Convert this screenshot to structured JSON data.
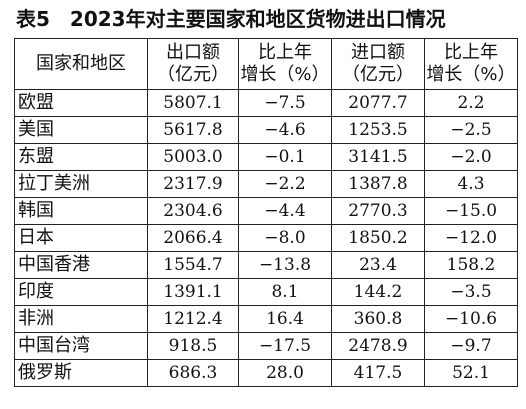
{
  "title": "表5　2023年对主要国家和地区货物进出口情况",
  "headers": {
    "region": "国家和地区",
    "export_line1": "出口额",
    "export_line2": "（亿元）",
    "export_growth_line1": "比上年",
    "export_growth_line2": "增长（%）",
    "import_line1": "进口额",
    "import_line2": "（亿元）",
    "import_growth_line1": "比上年",
    "import_growth_line2": "增长（%）"
  },
  "rows": [
    {
      "region": "欧盟",
      "export": "5807.1",
      "export_growth": "−7.5",
      "import": "2077.7",
      "import_growth": "2.2"
    },
    {
      "region": "美国",
      "export": "5617.8",
      "export_growth": "−4.6",
      "import": "1253.5",
      "import_growth": "−2.5"
    },
    {
      "region": "东盟",
      "export": "5003.0",
      "export_growth": "−0.1",
      "import": "3141.5",
      "import_growth": "−2.0"
    },
    {
      "region": "拉丁美洲",
      "export": "2317.9",
      "export_growth": "−2.2",
      "import": "1387.8",
      "import_growth": "4.3"
    },
    {
      "region": "韩国",
      "export": "2304.6",
      "export_growth": "−4.4",
      "import": "2770.3",
      "import_growth": "−15.0"
    },
    {
      "region": "日本",
      "export": "2066.4",
      "export_growth": "−8.0",
      "import": "1850.2",
      "import_growth": "−12.0"
    },
    {
      "region": "中国香港",
      "export": "1554.7",
      "export_growth": "−13.8",
      "import": "23.4",
      "import_growth": "158.2"
    },
    {
      "region": "印度",
      "export": "1391.1",
      "export_growth": "8.1",
      "import": "144.2",
      "import_growth": "−3.5"
    },
    {
      "region": "非洲",
      "export": "1212.4",
      "export_growth": "16.4",
      "import": "360.8",
      "import_growth": "−10.6"
    },
    {
      "region": "中国台湾",
      "export": "918.5",
      "export_growth": "−17.5",
      "import": "2478.9",
      "import_growth": "−9.7"
    },
    {
      "region": "俄罗斯",
      "export": "686.3",
      "export_growth": "28.0",
      "import": "417.5",
      "import_growth": "52.1"
    }
  ]
}
